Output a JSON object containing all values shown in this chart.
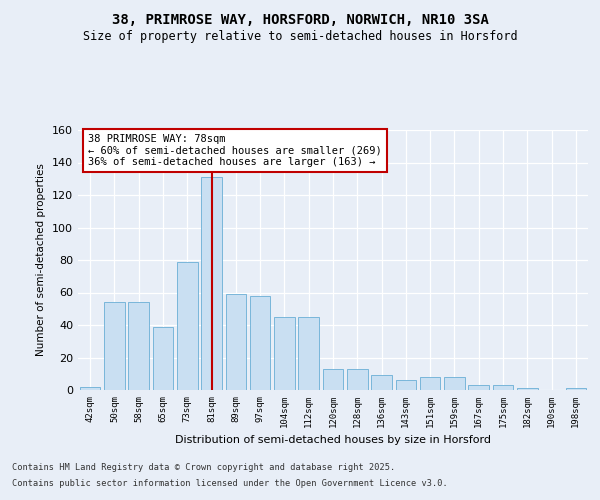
{
  "title1": "38, PRIMROSE WAY, HORSFORD, NORWICH, NR10 3SA",
  "title2": "Size of property relative to semi-detached houses in Horsford",
  "xlabel": "Distribution of semi-detached houses by size in Horsford",
  "ylabel": "Number of semi-detached properties",
  "categories": [
    "42sqm",
    "50sqm",
    "58sqm",
    "65sqm",
    "73sqm",
    "81sqm",
    "89sqm",
    "97sqm",
    "104sqm",
    "112sqm",
    "120sqm",
    "128sqm",
    "136sqm",
    "143sqm",
    "151sqm",
    "159sqm",
    "167sqm",
    "175sqm",
    "182sqm",
    "190sqm",
    "198sqm"
  ],
  "values": [
    2,
    54,
    54,
    39,
    79,
    131,
    59,
    58,
    45,
    45,
    13,
    13,
    9,
    6,
    8,
    8,
    3,
    3,
    1,
    0,
    1
  ],
  "bar_color": "#c9dff2",
  "bar_edge_color": "#6aaed6",
  "highlight_index": 5,
  "highlight_color": "#c00000",
  "ylim": [
    0,
    160
  ],
  "yticks": [
    0,
    20,
    40,
    60,
    80,
    100,
    120,
    140,
    160
  ],
  "annotation_title": "38 PRIMROSE WAY: 78sqm",
  "annotation_line1": "← 60% of semi-detached houses are smaller (269)",
  "annotation_line2": "36% of semi-detached houses are larger (163) →",
  "footnote1": "Contains HM Land Registry data © Crown copyright and database right 2025.",
  "footnote2": "Contains public sector information licensed under the Open Government Licence v3.0.",
  "bg_color": "#e8eef7"
}
